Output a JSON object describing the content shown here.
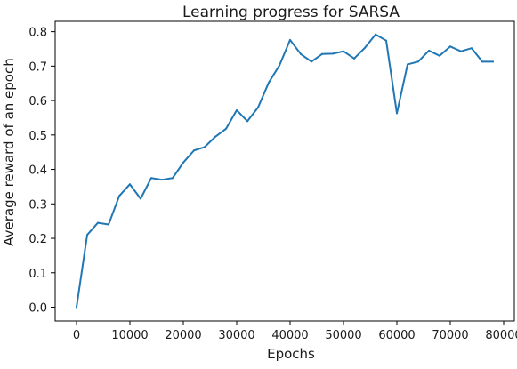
{
  "chart_data": {
    "type": "line",
    "title": "Learning progress for SARSA",
    "xlabel": "Epochs",
    "ylabel": "Average reward of an epoch",
    "xlim": [
      -4000,
      82000
    ],
    "ylim": [
      -0.04,
      0.83
    ],
    "xticks": [
      0,
      10000,
      20000,
      30000,
      40000,
      50000,
      60000,
      70000,
      80000
    ],
    "yticks": [
      0.0,
      0.1,
      0.2,
      0.3,
      0.4,
      0.5,
      0.6,
      0.7,
      0.8
    ],
    "grid": false,
    "legend": "none",
    "series": [
      {
        "color": "#1f77b4",
        "x": [
          0,
          2000,
          4000,
          6000,
          8000,
          10000,
          12000,
          14000,
          16000,
          18000,
          20000,
          22000,
          24000,
          26000,
          28000,
          30000,
          32000,
          34000,
          36000,
          38000,
          40000,
          42000,
          44000,
          46000,
          48000,
          50000,
          52000,
          54000,
          56000,
          58000,
          60000,
          62000,
          64000,
          66000,
          68000,
          70000,
          72000,
          74000,
          76000,
          78000
        ],
        "y": [
          0.0,
          0.21,
          0.245,
          0.24,
          0.323,
          0.357,
          0.315,
          0.375,
          0.37,
          0.375,
          0.42,
          0.455,
          0.465,
          0.495,
          0.518,
          0.572,
          0.54,
          0.58,
          0.652,
          0.702,
          0.776,
          0.735,
          0.713,
          0.735,
          0.736,
          0.743,
          0.722,
          0.753,
          0.792,
          0.774,
          0.563,
          0.705,
          0.713,
          0.745,
          0.73,
          0.757,
          0.743,
          0.752,
          0.713,
          0.713
        ]
      }
    ]
  }
}
